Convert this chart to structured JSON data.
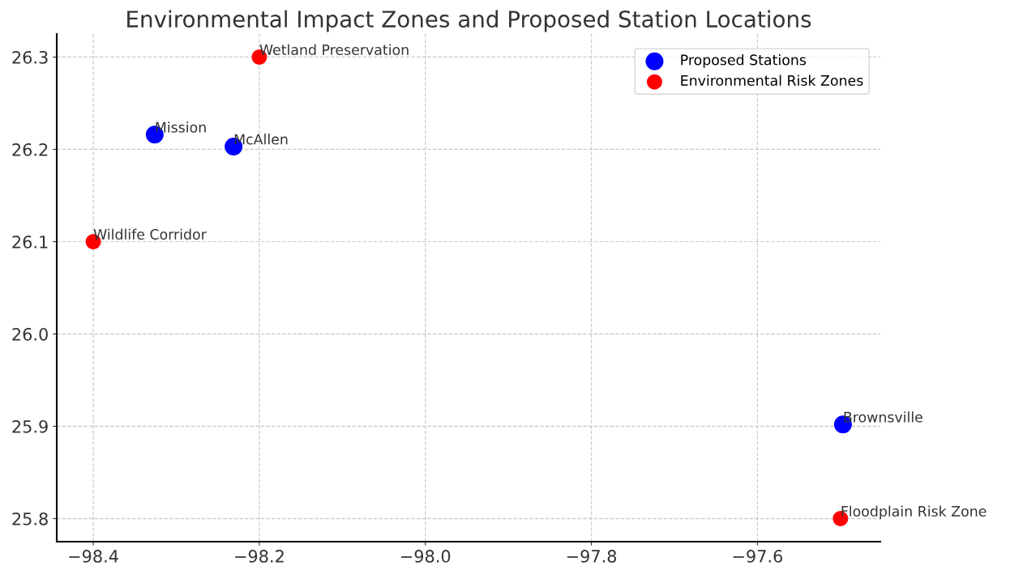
{
  "chart_data": {
    "type": "scatter",
    "title": "Environmental Impact Zones and Proposed Station Locations",
    "series": [
      {
        "name": "Proposed Stations",
        "color": "#0000ff",
        "x": [
          -98.326,
          -98.231,
          -97.497
        ],
        "values": [
          26.216,
          26.203,
          25.902
        ]
      },
      {
        "name": "Environmental Risk Zones",
        "color": "#ff0000",
        "x": [
          -98.2,
          -98.4,
          -97.5
        ],
        "values": [
          26.3,
          26.1,
          25.8
        ]
      }
    ],
    "annotations": [
      {
        "text": "Mission",
        "x": -98.326,
        "y": 26.216
      },
      {
        "text": "McAllen",
        "x": -98.231,
        "y": 26.203
      },
      {
        "text": "Brownsville",
        "x": -97.497,
        "y": 25.902
      },
      {
        "text": "Wetland Preservation",
        "x": -98.2,
        "y": 26.3
      },
      {
        "text": "Wildlife Corridor",
        "x": -98.4,
        "y": 26.1
      },
      {
        "text": "Floodplain Risk Zone",
        "x": -97.5,
        "y": 25.8
      }
    ],
    "xlim": [
      -98.444,
      -97.452
    ],
    "ylim": [
      25.775,
      26.325
    ],
    "xticks": [
      {
        "value": -98.4,
        "label": "−98.4"
      },
      {
        "value": -98.2,
        "label": "−98.2"
      },
      {
        "value": -98.0,
        "label": "−98.0"
      },
      {
        "value": -97.8,
        "label": "−97.8"
      },
      {
        "value": -97.6,
        "label": "−97.6"
      }
    ],
    "yticks": [
      {
        "value": 25.8,
        "label": "25.8"
      },
      {
        "value": 25.9,
        "label": "25.9"
      },
      {
        "value": 26.0,
        "label": "26.0"
      },
      {
        "value": 26.1,
        "label": "26.1"
      },
      {
        "value": 26.2,
        "label": "26.2"
      },
      {
        "value": 26.3,
        "label": "26.3"
      }
    ],
    "grid": true,
    "legend": "top right",
    "marker": "circle"
  }
}
